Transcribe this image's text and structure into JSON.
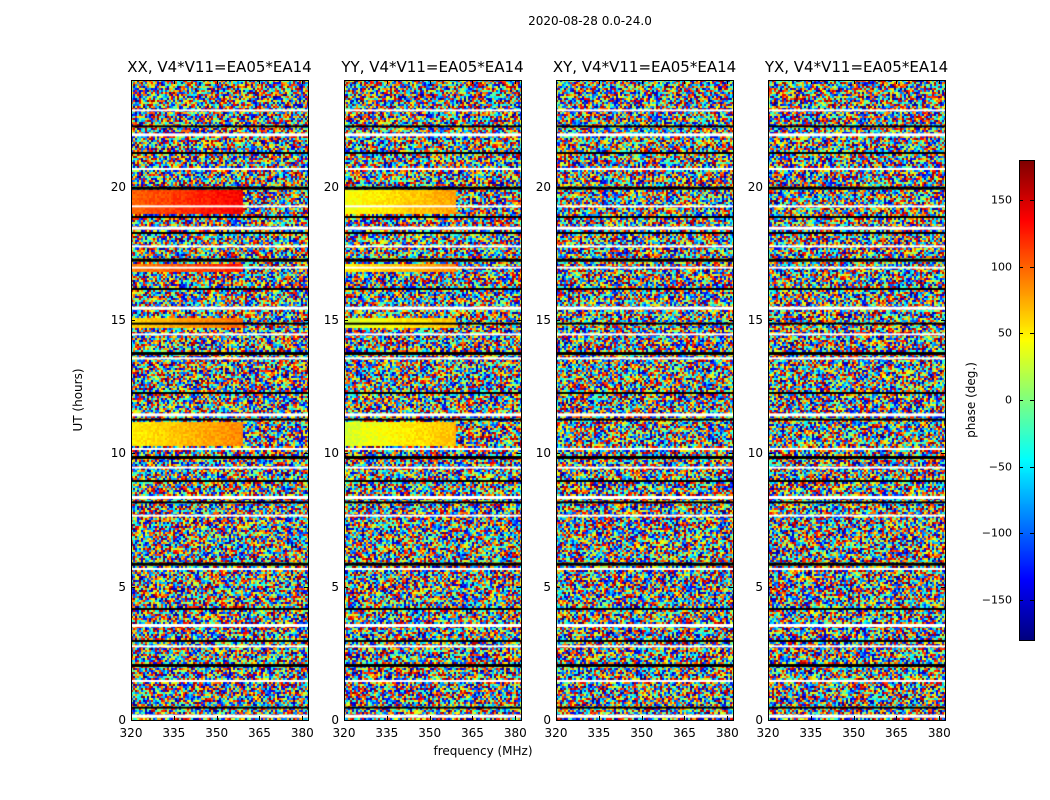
{
  "chart_data": {
    "type": "heatmap",
    "suptitle": "2020-08-28 0.0-24.0",
    "ylabel": "UT (hours)",
    "xlabel": "frequency (MHz)",
    "colorbar_label": "phase (deg.)",
    "colormap": "jet",
    "colorbar_range": [
      -180,
      180
    ],
    "colorbar_ticks": [
      -150,
      -100,
      -50,
      0,
      50,
      100,
      150
    ],
    "colorbar_tick_labels": [
      "−150",
      "−100",
      "−50",
      "0",
      "50",
      "100",
      "150"
    ],
    "xlim": [
      320,
      382
    ],
    "ylim": [
      0,
      24
    ],
    "xticks": [
      320,
      335,
      350,
      365,
      380
    ],
    "xtick_labels": [
      "320",
      "335",
      "350",
      "365",
      "380"
    ],
    "yticks": [
      0,
      5,
      10,
      15,
      20
    ],
    "ytick_labels": [
      "0",
      "5",
      "10",
      "15",
      "20"
    ],
    "panels": [
      {
        "title": "XX, V4*V11=EA05*EA14",
        "polarization": "XX",
        "coherent_bands": [
          {
            "ut_start": 19.0,
            "ut_end": 19.9,
            "phase": 130
          },
          {
            "ut_start": 10.3,
            "ut_end": 11.2,
            "phase": 80
          },
          {
            "ut_start": 16.8,
            "ut_end": 17.1,
            "phase": 120
          },
          {
            "ut_start": 14.7,
            "ut_end": 15.1,
            "phase": 90
          }
        ]
      },
      {
        "title": "YY, V4*V11=EA05*EA14",
        "polarization": "YY",
        "coherent_bands": [
          {
            "ut_start": 19.0,
            "ut_end": 19.9,
            "phase": 70
          },
          {
            "ut_start": 10.3,
            "ut_end": 11.2,
            "phase": 60
          },
          {
            "ut_start": 16.8,
            "ut_end": 17.1,
            "phase": 80
          },
          {
            "ut_start": 14.7,
            "ut_end": 15.1,
            "phase": 60
          }
        ]
      },
      {
        "title": "XY, V4*V11=EA05*EA14",
        "polarization": "XY",
        "coherent_bands": []
      },
      {
        "title": "YX, V4*V11=EA05*EA14",
        "polarization": "YX",
        "coherent_bands": []
      }
    ],
    "flagged_rows_ut": [
      0.2,
      0.5,
      1.5,
      2.1,
      2.8,
      3.0,
      3.6,
      4.2,
      5.7,
      5.9,
      7.7,
      8.2,
      8.4,
      9.0,
      9.5,
      9.9,
      10.2,
      11.3,
      11.5,
      12.3,
      13.6,
      13.8,
      14.5,
      14.9,
      15.5,
      16.2,
      17.0,
      17.3,
      17.8,
      18.3,
      18.5,
      18.9,
      19.3,
      20.0,
      20.7,
      21.3,
      22.0,
      22.3,
      22.9
    ]
  }
}
